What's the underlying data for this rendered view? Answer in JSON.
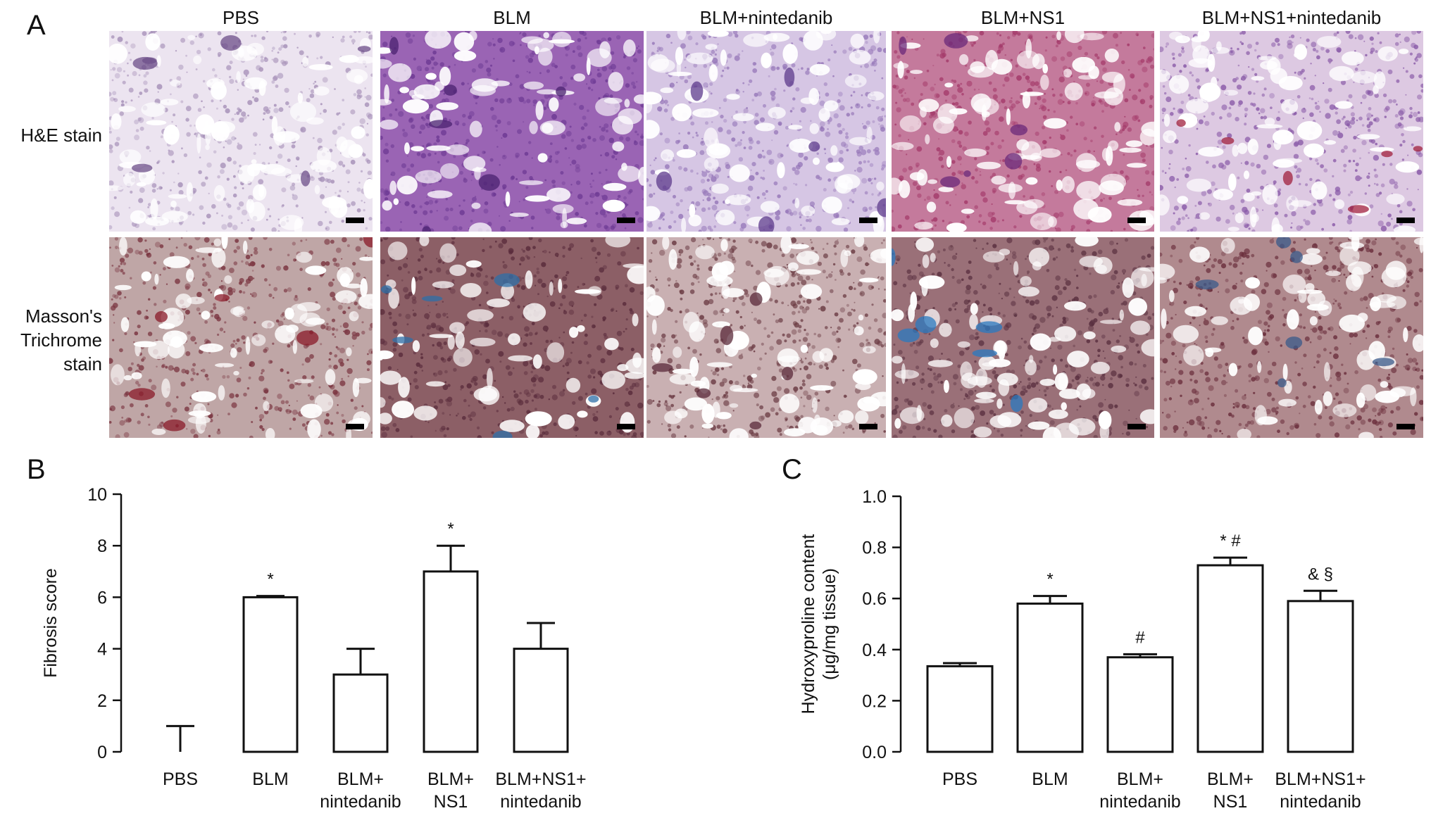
{
  "panel_a": {
    "letter": "A",
    "columns": [
      "PBS",
      "BLM",
      "BLM+nintedanib",
      "BLM+NS1",
      "BLM+NS1+nintedanib"
    ],
    "rows": [
      {
        "label_lines": [
          "H&E stain"
        ]
      },
      {
        "label_lines": [
          "Masson's",
          "Trichrome",
          "stain"
        ]
      }
    ],
    "he_colors": {
      "PBS": {
        "base": "#ece4f0",
        "tissue": "#a690b8",
        "accent": "#6d4f8a"
      },
      "BLM": {
        "base": "#9a64b4",
        "tissue": "#6e3a94",
        "accent": "#4a2270"
      },
      "BLM+nintedanib": {
        "base": "#d6c6e4",
        "tissue": "#9576b8",
        "accent": "#5e3b8c"
      },
      "BLM+NS1": {
        "base": "#c47a9c",
        "tissue": "#a43a6a",
        "accent": "#6b2a7a"
      },
      "BLM+NS1+nintedanib": {
        "base": "#ddc9e2",
        "tissue": "#8a5ba8",
        "accent": "#a0203e"
      }
    },
    "masson_colors": {
      "PBS": {
        "base": "#bfa6a6",
        "tissue": "#7a3440",
        "accent": "#8a1a28"
      },
      "BLM": {
        "base": "#8c5f66",
        "tissue": "#5a2c3c",
        "accent": "#2e6fa8"
      },
      "BLM+nintedanib": {
        "base": "#c9b0b2",
        "tissue": "#6a3a42",
        "accent": "#5a2a3a"
      },
      "BLM+NS1": {
        "base": "#9a7078",
        "tissue": "#5a3040",
        "accent": "#2a7ac0"
      },
      "BLM+NS1+nintedanib": {
        "base": "#b08a8e",
        "tissue": "#6a2e3c",
        "accent": "#3a5a8a"
      }
    }
  },
  "panel_b": {
    "letter": "B",
    "chart_data": {
      "type": "bar",
      "categories": [
        [
          "PBS"
        ],
        [
          "BLM"
        ],
        [
          "BLM+",
          "nintedanib"
        ],
        [
          "BLM+",
          "NS1"
        ],
        [
          "BLM+NS1+",
          "nintedanib"
        ]
      ],
      "values": [
        0,
        6,
        3,
        7,
        4
      ],
      "errors": [
        1,
        0.05,
        1,
        1,
        1
      ],
      "annotations": [
        "",
        "*",
        "",
        "*",
        ""
      ],
      "ylabel": "Fibrosis score",
      "ylim": [
        0,
        10
      ],
      "yticks": [
        0,
        2,
        4,
        6,
        8,
        10
      ],
      "ytick_labels": [
        "0",
        "2",
        "4",
        "6",
        "8",
        "10"
      ]
    }
  },
  "panel_c": {
    "letter": "C",
    "chart_data": {
      "type": "bar",
      "categories": [
        [
          "PBS"
        ],
        [
          "BLM"
        ],
        [
          "BLM+",
          "nintedanib"
        ],
        [
          "BLM+",
          "NS1"
        ],
        [
          "BLM+NS1+",
          "nintedanib"
        ]
      ],
      "values": [
        0.335,
        0.58,
        0.37,
        0.73,
        0.59
      ],
      "errors": [
        0.012,
        0.03,
        0.012,
        0.03,
        0.04
      ],
      "annotations": [
        "",
        "*",
        "#",
        "* #",
        "& §"
      ],
      "ylabel_lines": [
        "Hydroxyproline content",
        "(μg/mg tissue)"
      ],
      "ylim": [
        0,
        1
      ],
      "yticks": [
        0,
        0.2,
        0.4,
        0.6,
        0.8,
        1.0
      ],
      "ytick_labels": [
        "0.0",
        "0.2",
        "0.4",
        "0.6",
        "0.8",
        "1.0"
      ]
    }
  }
}
